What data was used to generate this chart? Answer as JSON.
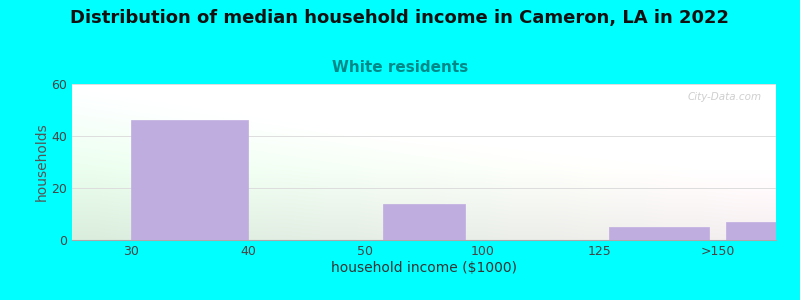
{
  "title": "Distribution of median household income in Cameron, LA in 2022",
  "subtitle": "White residents",
  "xlabel": "household income ($1000)",
  "ylabel": "households",
  "background_color": "#00FFFF",
  "bar_color": "#C0ADE0",
  "bar_edge_color": "#C0ADE0",
  "title_fontsize": 13,
  "subtitle_fontsize": 11,
  "subtitle_color": "#008888",
  "xlabel_fontsize": 10,
  "ylabel_fontsize": 10,
  "ylim": [
    0,
    60
  ],
  "yticks": [
    0,
    20,
    40,
    60
  ],
  "xtick_labels": [
    "30",
    "40",
    "50",
    "100",
    "125",
    ">150"
  ],
  "xtick_positions": [
    0,
    1,
    2,
    3,
    4,
    5
  ],
  "bar_lefts": [
    0.0,
    1.0,
    2.0,
    3.0,
    4.0,
    5.0
  ],
  "bar_widths": [
    1.0,
    0.0,
    0.7,
    0.0,
    0.85,
    0.85
  ],
  "bar_heights": [
    46,
    0,
    14,
    0,
    5,
    7
  ],
  "watermark": "City-Data.com",
  "grid_color": "#dddddd",
  "chart_bg_colors": [
    "#daeedd",
    "#eef6ee",
    "#f5f0f5",
    "#f5eef0"
  ]
}
